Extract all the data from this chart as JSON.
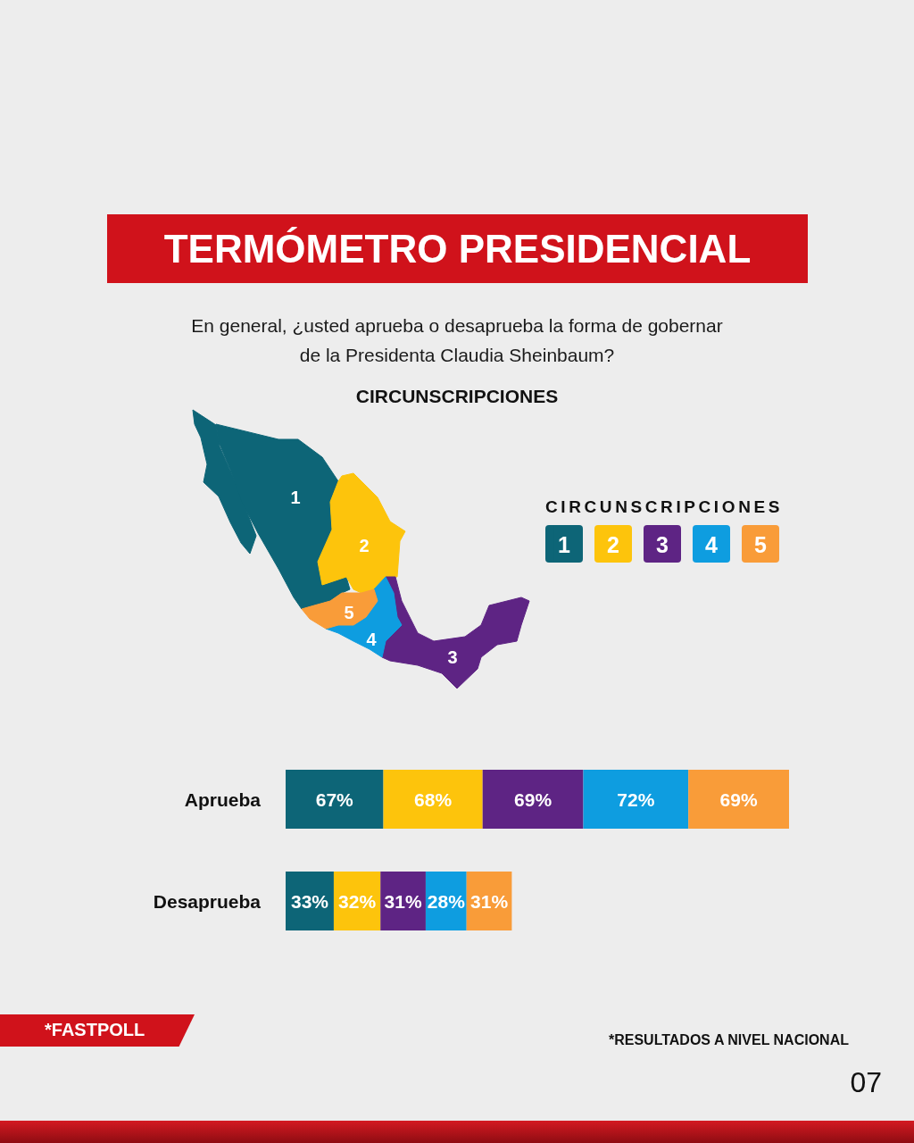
{
  "chart_data": {
    "type": "bar",
    "orientation": "horizontal",
    "stacked": true,
    "title": "TERMÓMETRO PRESIDENCIAL",
    "subtitle": "En general, ¿usted aprueba o desaprueba la forma de gobernar de la Presidenta Claudia Sheinbaum?",
    "legend_title": "CIRCUNSCRIPCIONES",
    "legend": "top right",
    "tick_labels": "y",
    "categories": [
      "Aprueba",
      "Desaprueba"
    ],
    "series": [
      {
        "name": "1",
        "color": "#0d6577",
        "values": [
          67,
          33
        ],
        "value_labels": [
          "67%",
          "33%"
        ]
      },
      {
        "name": "2",
        "color": "#fdc40c",
        "values": [
          68,
          32
        ],
        "value_labels": [
          "68%",
          "32%"
        ]
      },
      {
        "name": "3",
        "color": "#5e2484",
        "values": [
          69,
          31
        ],
        "value_labels": [
          "69%",
          "31%"
        ]
      },
      {
        "name": "4",
        "color": "#0e9de0",
        "values": [
          72,
          28
        ],
        "value_labels": [
          "72%",
          "28%"
        ]
      },
      {
        "name": "5",
        "color": "#f99c39",
        "values": [
          69,
          31
        ],
        "value_labels": [
          "69%",
          "31%"
        ]
      }
    ],
    "annotations": [
      "CIRCUNSCRIPCIONES",
      "*FASTPOLL",
      "*RESULTADOS A NIVEL NACIONAL",
      "07"
    ]
  }
}
